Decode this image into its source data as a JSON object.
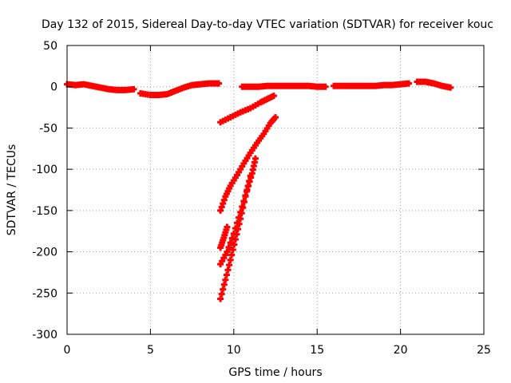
{
  "chart_data": {
    "type": "scatter",
    "title": "Day 132 of 2015, Sidereal Day-to-day VTEC variation (SDTVAR) for receiver kouc",
    "xlabel": "GPS time / hours",
    "ylabel": "SDTVAR / TECUs",
    "xlim": [
      0,
      25
    ],
    "ylim": [
      -300,
      50
    ],
    "xticks": [
      0,
      5,
      10,
      15,
      20,
      25
    ],
    "yticks": [
      50,
      0,
      -50,
      -100,
      -150,
      -200,
      -250,
      -300
    ],
    "grid": true,
    "legend": "none",
    "marker": "plus",
    "color": "#ff0000",
    "series": [
      {
        "x": [
          0.0,
          0.5,
          1.0,
          1.5,
          2.0,
          2.5,
          3.0,
          3.5,
          4.0
        ],
        "y": [
          3,
          2,
          3,
          1,
          -1,
          -3,
          -4,
          -4,
          -3
        ]
      },
      {
        "x": [
          4.4,
          5.0,
          5.5,
          6.0,
          6.5,
          7.0,
          7.5,
          8.0,
          8.5,
          9.0,
          9.1
        ],
        "y": [
          -8,
          -10,
          -10,
          -9,
          -5,
          -1,
          2,
          3,
          4,
          4,
          4
        ]
      },
      {
        "x": [
          10.5,
          11.0,
          11.5,
          12.0,
          12.5,
          13.0,
          13.5,
          14.0,
          14.5,
          15.0,
          15.5
        ],
        "y": [
          0,
          0,
          0,
          1,
          1,
          1,
          1,
          1,
          1,
          0,
          0
        ]
      },
      {
        "x": [
          16.0,
          16.5,
          17.0,
          17.5,
          18.0,
          18.5,
          19.0,
          19.5,
          20.0,
          20.5
        ],
        "y": [
          1,
          1,
          1,
          1,
          1,
          1,
          2,
          2,
          3,
          4
        ]
      },
      {
        "x": [
          21.0,
          21.5,
          22.0,
          22.5,
          23.0
        ],
        "y": [
          6,
          6,
          4,
          1,
          -1
        ]
      },
      {
        "x": [
          9.2,
          9.8,
          10.4,
          11.0,
          11.6,
          12.0,
          12.4
        ],
        "y": [
          -43,
          -37,
          -31,
          -26,
          -19,
          -15,
          -11
        ]
      },
      {
        "x": [
          9.2,
          9.5,
          9.8,
          10.2,
          10.6,
          11.0,
          11.4,
          11.8,
          12.2,
          12.5
        ],
        "y": [
          -150,
          -133,
          -120,
          -107,
          -93,
          -80,
          -68,
          -57,
          -44,
          -37
        ]
      },
      {
        "x": [
          9.2,
          9.4,
          9.6
        ],
        "y": [
          -195,
          -183,
          -170
        ]
      },
      {
        "x": [
          9.2,
          9.6,
          10.0,
          10.4,
          10.8,
          11.1,
          11.3
        ],
        "y": [
          -215,
          -200,
          -178,
          -152,
          -125,
          -105,
          -87
        ]
      },
      {
        "x": [
          9.2,
          9.5,
          9.8,
          10.1,
          10.4,
          10.7,
          11.0
        ],
        "y": [
          -257,
          -234,
          -210,
          -185,
          -160,
          -133,
          -108
        ]
      }
    ]
  }
}
